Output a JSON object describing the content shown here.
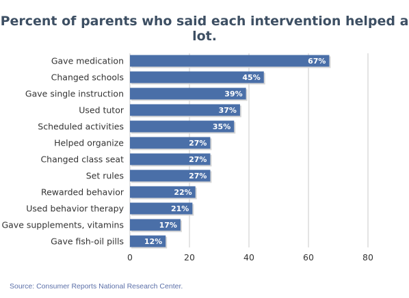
{
  "chart_data": {
    "type": "bar",
    "orientation": "horizontal",
    "title": "Percent of parents who said each intervention helped a lot.",
    "categories": [
      "Gave medication",
      "Changed schools",
      "Gave single instruction",
      "Used tutor",
      "Scheduled activities",
      "Helped organize",
      "Changed class seat",
      "Set rules",
      "Rewarded behavior",
      "Used behavior therapy",
      "Gave supplements, vitamins",
      "Gave fish-oil pills"
    ],
    "values": [
      67,
      45,
      39,
      37,
      35,
      27,
      27,
      27,
      22,
      21,
      17,
      12
    ],
    "value_labels": [
      "67%",
      "45%",
      "39%",
      "37%",
      "35%",
      "27%",
      "27%",
      "27%",
      "22%",
      "21%",
      "17%",
      "12%"
    ],
    "xlim": [
      0,
      80
    ],
    "xticks": [
      0,
      20,
      40,
      60,
      80
    ],
    "grid": "vertical",
    "bar_color": "#4a6fa8"
  },
  "source": "Source: Consumer Reports National Research Center."
}
